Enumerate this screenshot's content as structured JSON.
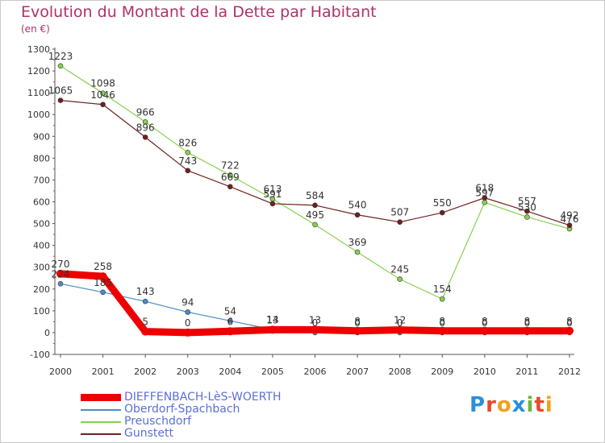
{
  "chart_data": {
    "type": "line",
    "title": "Evolution du Montant de la Dette par Habitant",
    "subtitle": "(en €)",
    "x": [
      "2000",
      "2001",
      "2002",
      "2003",
      "2004",
      "2005",
      "2006",
      "2007",
      "2008",
      "2009",
      "2010",
      "2011",
      "2012"
    ],
    "ylim": [
      -100,
      1300
    ],
    "yticks": [
      -100,
      0,
      100,
      200,
      300,
      400,
      500,
      600,
      700,
      800,
      900,
      1000,
      1100,
      1200,
      1300
    ],
    "grid": false,
    "legend_position": "bottom-left",
    "series": [
      {
        "name": "DIEFFENBACH-LèS-WOERTH",
        "color": "#ee0000",
        "values": [
          270,
          258,
          5,
          0,
          6,
          13,
          13,
          8,
          12,
          8,
          8,
          8,
          8
        ]
      },
      {
        "name": "Oberdorf-Spachbach",
        "color": "#4a8cc8",
        "values": [
          224,
          185,
          143,
          94,
          54,
          14,
          0,
          0,
          0,
          0,
          0,
          0,
          0
        ]
      },
      {
        "name": "Preuschdorf",
        "color": "#88d050",
        "values": [
          1223,
          1098,
          966,
          826,
          722,
          613,
          495,
          369,
          245,
          154,
          597,
          530,
          476
        ]
      },
      {
        "name": "Gunstett",
        "color": "#702020",
        "values": [
          1065,
          1046,
          896,
          743,
          669,
          591,
          584,
          540,
          507,
          550,
          618,
          557,
          492
        ]
      }
    ]
  },
  "logo": {
    "letters": [
      "P",
      "r",
      "o",
      "x",
      "i",
      "t",
      "i"
    ],
    "colors": [
      "#2a8fd8",
      "#e84a2a",
      "#f0a020",
      "#2a8fd8",
      "#6ab83a",
      "#e84a2a",
      "#f0a020"
    ]
  }
}
